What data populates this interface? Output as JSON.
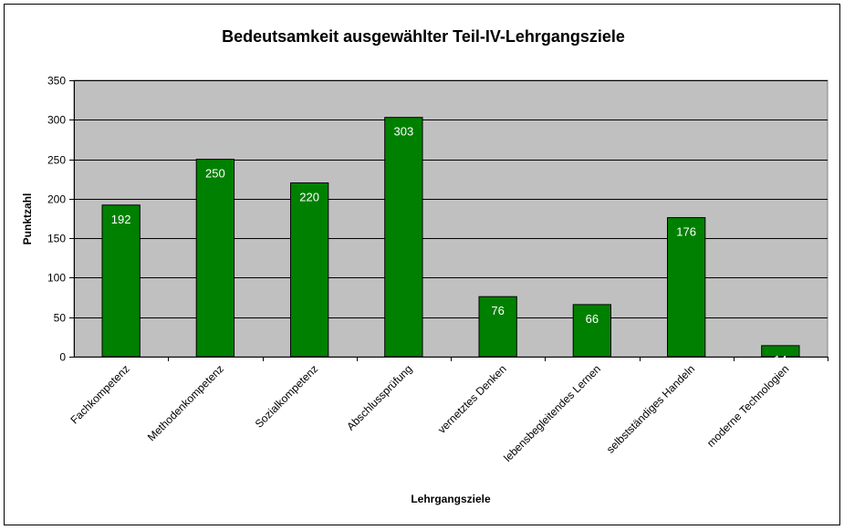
{
  "chart_data": {
    "type": "bar",
    "title": "Bedeutsamkeit ausgewählter Teil-IV-Lehrgangsziele",
    "xlabel": "Lehrgangsziele",
    "ylabel": "Punktzahl",
    "categories": [
      "Fachkompetenz",
      "Methodenkompetenz",
      "Sozialkompetenz",
      "Abschlussprüfung",
      "vernetztes Denken",
      "lebensbegleitendes Lernen",
      "selbstständiges Handeln",
      "moderne Technologien"
    ],
    "values": [
      192,
      250,
      220,
      303,
      76,
      66,
      176,
      14
    ],
    "ylim": [
      0,
      350
    ],
    "yticks": [
      0,
      50,
      100,
      150,
      200,
      250,
      300,
      350
    ],
    "grid": true,
    "legend": "none",
    "colors": {
      "bar": "#008000",
      "bar_border": "#000000",
      "plot_background": "#c0c0c0",
      "data_label": "#ffffff"
    }
  }
}
